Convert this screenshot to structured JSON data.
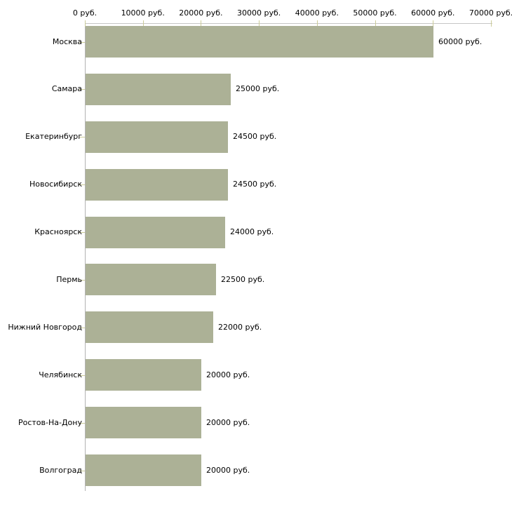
{
  "chart_data": {
    "type": "bar",
    "orientation": "horizontal",
    "title": "",
    "categories": [
      "Москва",
      "Самара",
      "Екатеринбург",
      "Новосибирск",
      "Красноярск",
      "Пермь",
      "Нижний Новгород",
      "Челябинск",
      "Ростов-На-Дону",
      "Волгоград"
    ],
    "values": [
      60000,
      25000,
      24500,
      24500,
      24000,
      22500,
      22000,
      20000,
      20000,
      20000
    ],
    "value_labels": [
      "60000 руб.",
      "25000 руб.",
      "24500 руб.",
      "24500 руб.",
      "24000 руб.",
      "22500 руб.",
      "22000 руб.",
      "20000 руб.",
      "20000 руб.",
      "20000 руб."
    ],
    "xlim": [
      0,
      70000
    ],
    "x_ticks": [
      0,
      10000,
      20000,
      30000,
      40000,
      50000,
      60000,
      70000
    ],
    "x_tick_labels": [
      "0 руб.",
      "10000 руб.",
      "20000 руб.",
      "30000 руб.",
      "40000 руб.",
      "50000 руб.",
      "60000 руб.",
      "70000 руб."
    ],
    "xlabel": "",
    "ylabel": "",
    "grid": false,
    "legend": "none",
    "axis_position": "top",
    "colors": {
      "bar": "#acb196",
      "x_axis_line": "#c6c6c6",
      "y_axis_line": "#b3b3b3",
      "tick": "#cccc99",
      "text": "#000000",
      "background": "#ffffff"
    }
  }
}
